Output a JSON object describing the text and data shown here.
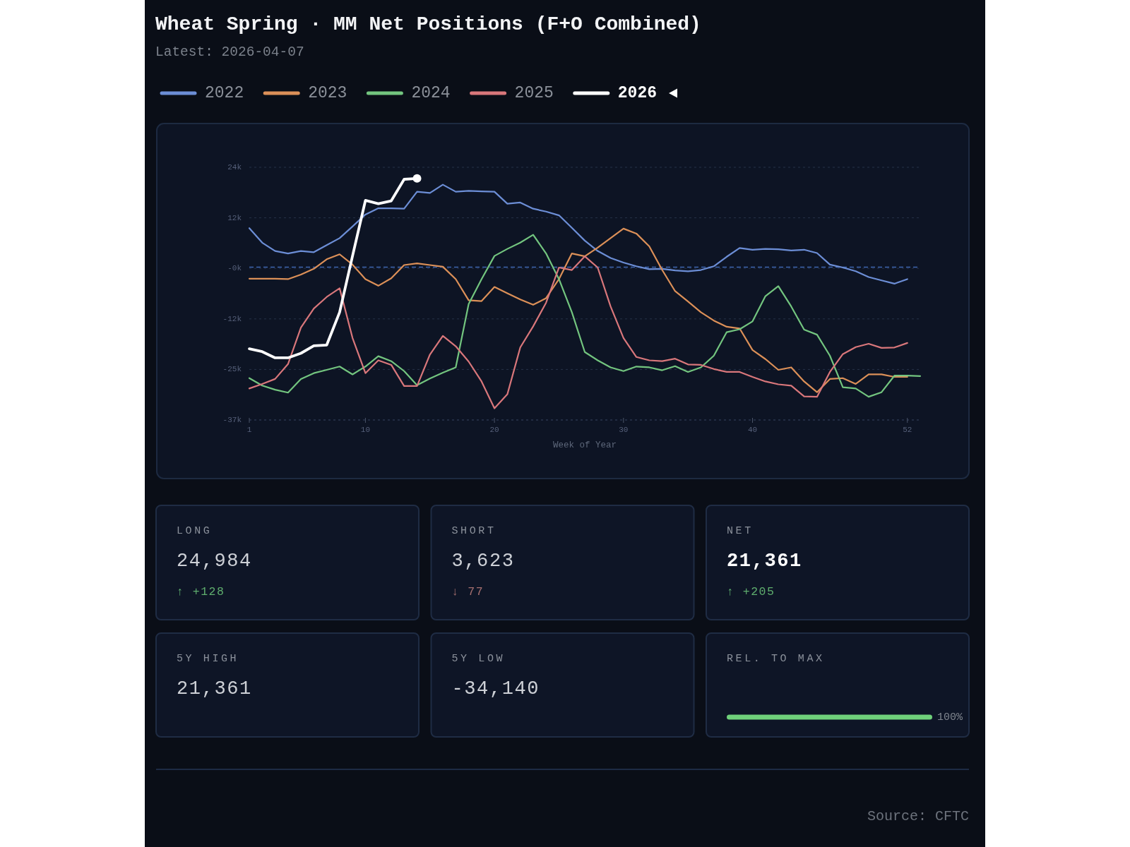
{
  "chart_data": [
    {
      "type": "line",
      "title": "Wheat Spring · MM Net Positions (F+O Combined)",
      "subtitle": "Latest: 2026-04-07",
      "xlabel": "Week of Year",
      "annotations": [
        "Source: CFTC"
      ],
      "x": [
        1,
        2,
        3,
        4,
        5,
        6,
        7,
        8,
        9,
        10,
        11,
        12,
        13,
        14,
        15,
        16,
        17,
        18,
        19,
        20,
        21,
        22,
        23,
        24,
        25,
        26,
        27,
        28,
        29,
        30,
        31,
        32,
        33,
        34,
        35,
        36,
        37,
        38,
        39,
        40,
        41,
        42,
        43,
        44,
        45,
        46,
        47,
        48,
        49,
        50,
        51,
        52
      ],
      "xlim": [
        1,
        53
      ],
      "xticks": [
        1,
        10,
        20,
        30,
        40,
        52
      ],
      "ylim": [
        -36900,
        24100
      ],
      "yticks": [
        {
          "value": -36900,
          "label": "-37k"
        },
        {
          "value": -24700,
          "label": "-25k"
        },
        {
          "value": -12500,
          "label": "-12k"
        },
        {
          "value": -300,
          "label": "-0k"
        },
        {
          "value": 11900,
          "label": "12k"
        },
        {
          "value": 24100,
          "label": "24k"
        }
      ],
      "grid": "y",
      "legend": "top left",
      "ref_lines": [
        {
          "axis": "y",
          "value": 0,
          "color": "#3f66b0",
          "line_style": "dashed"
        }
      ],
      "series": [
        {
          "name": "2022",
          "color": "#6c8ed6",
          "values": [
            9400,
            5900,
            3900,
            3300,
            3900,
            3600,
            5300,
            7000,
            9800,
            12700,
            14200,
            14200,
            14100,
            18200,
            17900,
            19900,
            18200,
            18400,
            18300,
            18200,
            15300,
            15600,
            14100,
            13400,
            12500,
            9500,
            6400,
            3900,
            2200,
            1100,
            200,
            -500,
            -400,
            -800,
            -1000,
            -700,
            200,
            2500,
            4600,
            4200,
            4400,
            4300,
            4000,
            4200,
            3400,
            600,
            -100,
            -1000,
            -2400,
            -3200,
            -4000,
            -2900
          ]
        },
        {
          "name": "2023",
          "color": "#dc9058",
          "values": [
            -2800,
            -2800,
            -2800,
            -2900,
            -1800,
            -400,
            1900,
            3100,
            600,
            -2900,
            -4500,
            -2700,
            500,
            900,
            500,
            100,
            -2900,
            -8000,
            -8200,
            -4800,
            -6300,
            -7800,
            -9100,
            -7500,
            -2900,
            3300,
            2600,
            4700,
            7000,
            9300,
            8100,
            5000,
            -700,
            -5800,
            -8300,
            -10900,
            -12900,
            -14400,
            -14800,
            -20000,
            -22200,
            -24800,
            -24200,
            -27600,
            -30200,
            -27000,
            -26800,
            -28200,
            -25900,
            -25900,
            -26500,
            -26500
          ]
        },
        {
          "name": "2024",
          "color": "#73c57f",
          "x": [
            1,
            2,
            3,
            4,
            5,
            6,
            7,
            8,
            9,
            10,
            11,
            12,
            13,
            14,
            15,
            16,
            17,
            18,
            19,
            20,
            21,
            22,
            23,
            24,
            25,
            26,
            27,
            28,
            29,
            30,
            31,
            32,
            33,
            34,
            35,
            36,
            37,
            38,
            39,
            40,
            41,
            42,
            43,
            44,
            45,
            46,
            47,
            48,
            49,
            50,
            51,
            52,
            53
          ],
          "values": [
            -26800,
            -28600,
            -29600,
            -30300,
            -27000,
            -25600,
            -24800,
            -24000,
            -25900,
            -24000,
            -21500,
            -22700,
            -25100,
            -28500,
            -26900,
            -25500,
            -24200,
            -8900,
            -2900,
            2700,
            4400,
            5900,
            7800,
            3300,
            -2900,
            -10900,
            -20500,
            -22500,
            -24200,
            -25100,
            -24000,
            -24200,
            -24900,
            -23900,
            -25300,
            -24200,
            -21400,
            -15700,
            -15000,
            -13100,
            -7000,
            -4600,
            -9500,
            -15100,
            -16300,
            -21400,
            -29000,
            -29300,
            -31300,
            -30200,
            -26200,
            -26200,
            -26300
          ]
        },
        {
          "name": "2025",
          "color": "#d9777b",
          "values": [
            -29300,
            -28200,
            -27000,
            -23400,
            -14600,
            -10000,
            -7200,
            -5100,
            -17100,
            -25600,
            -22500,
            -23600,
            -28700,
            -28700,
            -21100,
            -16600,
            -19100,
            -22800,
            -27600,
            -34100,
            -30700,
            -19400,
            -14300,
            -8600,
            -100,
            -700,
            2600,
            -100,
            -9500,
            -17100,
            -21700,
            -22500,
            -22700,
            -22100,
            -23500,
            -23600,
            -24600,
            -25300,
            -25300,
            -26500,
            -27600,
            -28300,
            -28600,
            -31200,
            -31300,
            -25300,
            -21000,
            -19300,
            -18500,
            -19500,
            -19400,
            -18300
          ]
        },
        {
          "name": "2026",
          "color": "#ffffff",
          "x": [
            1,
            2,
            3,
            4,
            5,
            6,
            7,
            8,
            9,
            10,
            11,
            12,
            13,
            14
          ],
          "values": [
            -19700,
            -20400,
            -21900,
            -21900,
            -20800,
            -19000,
            -18800,
            -10900,
            2700,
            16100,
            15300,
            16000,
            21200,
            21400
          ]
        },
        {
          "type": "scatter",
          "color": "#ffffff",
          "marker": "circle",
          "x": [
            14
          ],
          "values": [
            21400
          ]
        }
      ]
    },
    {
      "type": "other",
      "title": "LONG",
      "annotations": [
        "24,984",
        "↑ +128"
      ],
      "color": "#5fae6e"
    },
    {
      "type": "other",
      "title": "SHORT",
      "annotations": [
        "3,623",
        "↓ 77"
      ],
      "color": "#a56f6f"
    },
    {
      "type": "other",
      "title": "NET",
      "annotations": [
        "21,361",
        "↑ +205"
      ],
      "color": "#5fae6e"
    },
    {
      "type": "other",
      "title": "5Y HIGH",
      "annotations": [
        "21,361"
      ]
    },
    {
      "type": "other",
      "title": "5Y LOW",
      "annotations": [
        "-34,140"
      ]
    },
    {
      "type": "bar",
      "orientation": "horizontal",
      "title": "REL. TO MAX",
      "categories": [
        null
      ],
      "values": [
        100
      ],
      "value_labels": [
        "100%"
      ],
      "color": "#6fd07a"
    }
  ]
}
